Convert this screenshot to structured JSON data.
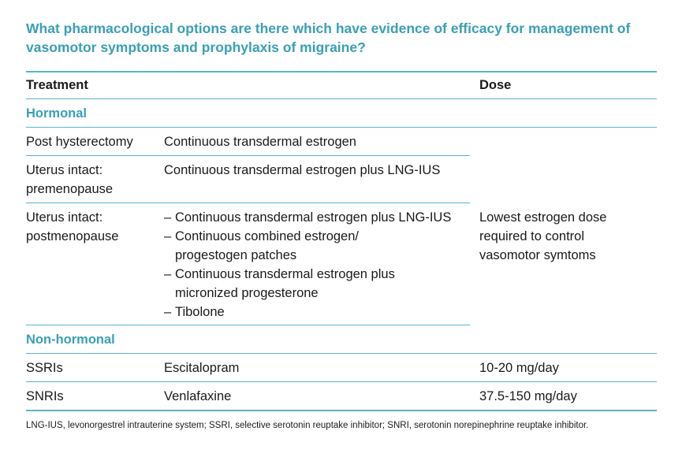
{
  "title": "What pharmacological options are there which have evidence of efficacy for management of vasomotor symptoms and prophylaxis of migraine?",
  "columns": {
    "treatment": "Treatment",
    "dose": "Dose"
  },
  "sections": {
    "hormonal": "Hormonal",
    "non_hormonal": "Non-hormonal"
  },
  "rows": {
    "post_hysterectomy": {
      "label": "Post hysterectomy",
      "treatment": "Continuous transdermal estrogen"
    },
    "premenopause": {
      "label_line1": "Uterus intact:",
      "label_line2": "premenopause",
      "treatment": "Continuous transdermal estrogen plus LNG-IUS"
    },
    "postmenopause": {
      "label_line1": "Uterus intact:",
      "label_line2": "postmenopause",
      "options": [
        {
          "dash": "–",
          "line1": "Continuous transdermal estrogen plus LNG-IUS",
          "line2": ""
        },
        {
          "dash": "–",
          "line1": "Continuous combined estrogen/",
          "line2": "progestogen patches"
        },
        {
          "dash": "–",
          "line1": "Continuous transdermal estrogen plus",
          "line2": "micronized progesterone"
        },
        {
          "dash": "–",
          "line1": "Tibolone",
          "line2": ""
        }
      ]
    },
    "hormonal_dose": {
      "line1": "Lowest estrogen dose",
      "line2": "required to control",
      "line3": "vasomotor symtoms"
    },
    "ssris": {
      "label": "SSRIs",
      "treatment": "Escitalopram",
      "dose": "10-20 mg/day"
    },
    "snris": {
      "label": "SNRIs",
      "treatment": "Venlafaxine",
      "dose": "37.5-150 mg/day"
    }
  },
  "footnote": "LNG-IUS, levonorgestrel intrauterine system; SSRI, selective serotonin reuptake inhibitor; SNRI, serotonin norepinephrine reuptake inhibitor."
}
